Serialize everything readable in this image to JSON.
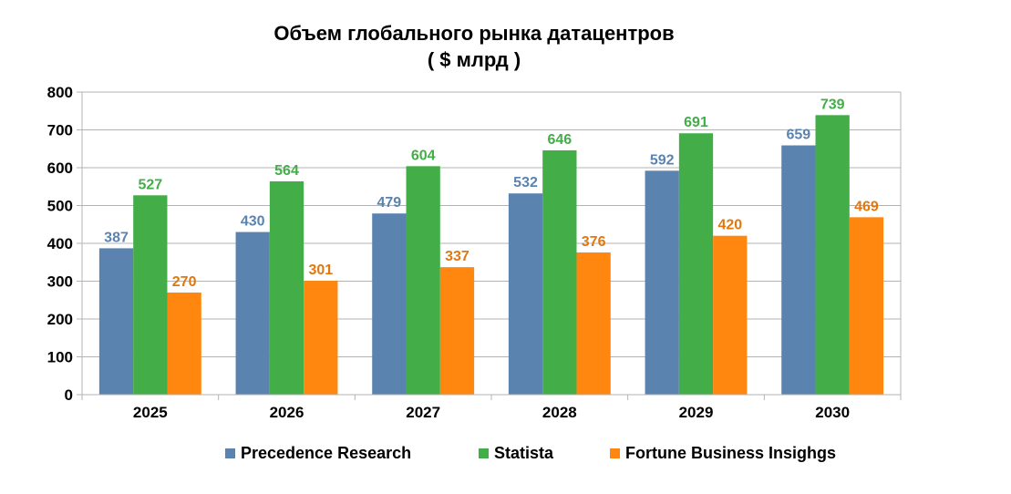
{
  "chart_data": {
    "type": "bar",
    "title": "Объем глобального рынка датацентров",
    "subtitle": "( $ млрд )",
    "categories": [
      "2025",
      "2026",
      "2027",
      "2028",
      "2029",
      "2030"
    ],
    "series": [
      {
        "name": "Precedence Research",
        "values": [
          387,
          430,
          479,
          532,
          592,
          659
        ],
        "color": "#5b83b0",
        "label_color": "#5b83b0"
      },
      {
        "name": "Statista",
        "values": [
          527,
          564,
          604,
          646,
          691,
          739
        ],
        "color": "#43ad48",
        "label_color": "#43ad48"
      },
      {
        "name": "Fortune Business Insighgs",
        "values": [
          270,
          301,
          337,
          376,
          420,
          469
        ],
        "color": "#ff870f",
        "label_color": "#e07810"
      }
    ],
    "ylim": [
      0,
      800
    ],
    "yticks": [
      "0",
      "100",
      "200",
      "300",
      "400",
      "500",
      "600",
      "700",
      "800"
    ],
    "grid": true,
    "legend_position": "bottom"
  }
}
